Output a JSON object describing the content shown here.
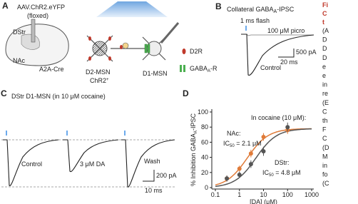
{
  "panels": {
    "a": {
      "label": "A",
      "vector": "AAV.ChR2.eYFP",
      "floxed": "(floxed)",
      "dstr": "DStr",
      "nac": "NAc",
      "mouse": "A2A-Cre",
      "d2": "D2-MSN",
      "chr2": "ChR2",
      "chr2_sup": "+",
      "d1": "D1-MSN",
      "d2r": "D2R",
      "gaba": "GABA",
      "gaba_sub": "A",
      "gaba_suffix": "-R"
    },
    "b": {
      "label": "B",
      "title": "Collateral GABA",
      "title_sub": "A",
      "title_suffix": "-IPSC",
      "flash": "1 ms flash",
      "picro": "100 μM picro",
      "control": "Control",
      "scale_y": "500 pA",
      "scale_x": "20 ms"
    },
    "c": {
      "label": "C",
      "title": "DStr D1-MSN (in 10 μM cocaine)",
      "control": "Control",
      "da": "3 μM DA",
      "wash": "Wash",
      "scale_y": "200 pA",
      "scale_x": "10 ms"
    },
    "d": {
      "label": "D"
    }
  },
  "chart_data": {
    "type": "scatter",
    "annotation": "In cocaine (10 μM):",
    "ylabel_prefix": "% Inhibition GABA",
    "ylabel_sub": "A",
    "ylabel_suffix": "-IPSC",
    "xlabel": "[DA] (μM)",
    "x": [
      0.3,
      1,
      3,
      10,
      100
    ],
    "series": [
      {
        "name": "NAc:",
        "color": "#e07b39",
        "values": [
          12,
          25,
          45,
          67,
          76
        ],
        "errors": [
          4,
          4,
          5,
          5,
          5
        ],
        "ic50": 2.1,
        "ic50_prefix": "IC",
        "ic50_sub": "50",
        "ic50_text": " = 2.1 μM",
        "fit_top": 78
      },
      {
        "name": "DStr:",
        "color": "#555555",
        "values": [
          12,
          17,
          31,
          48,
          80
        ],
        "errors": [
          4,
          4,
          5,
          6,
          6
        ],
        "ic50": 4.8,
        "ic50_prefix": "IC",
        "ic50_sub": "50",
        "ic50_text": " = 4.8 μM",
        "fit_top": 78
      }
    ],
    "xscale": "log",
    "xlim": [
      0.1,
      1000
    ],
    "ylim": [
      0,
      100
    ],
    "xticks": [
      0.1,
      1,
      10,
      100,
      1000
    ],
    "yticks": [
      0,
      20,
      40,
      60,
      80,
      100
    ]
  },
  "side_text": {
    "red": [
      "Fi",
      "C",
      "t"
    ],
    "black": [
      "(A",
      "D",
      "D",
      "D",
      "e",
      "e",
      "in",
      "re",
      "(E",
      "C",
      "th",
      "F",
      "C",
      "(D",
      "M",
      "in",
      "fo",
      "(C"
    ]
  }
}
